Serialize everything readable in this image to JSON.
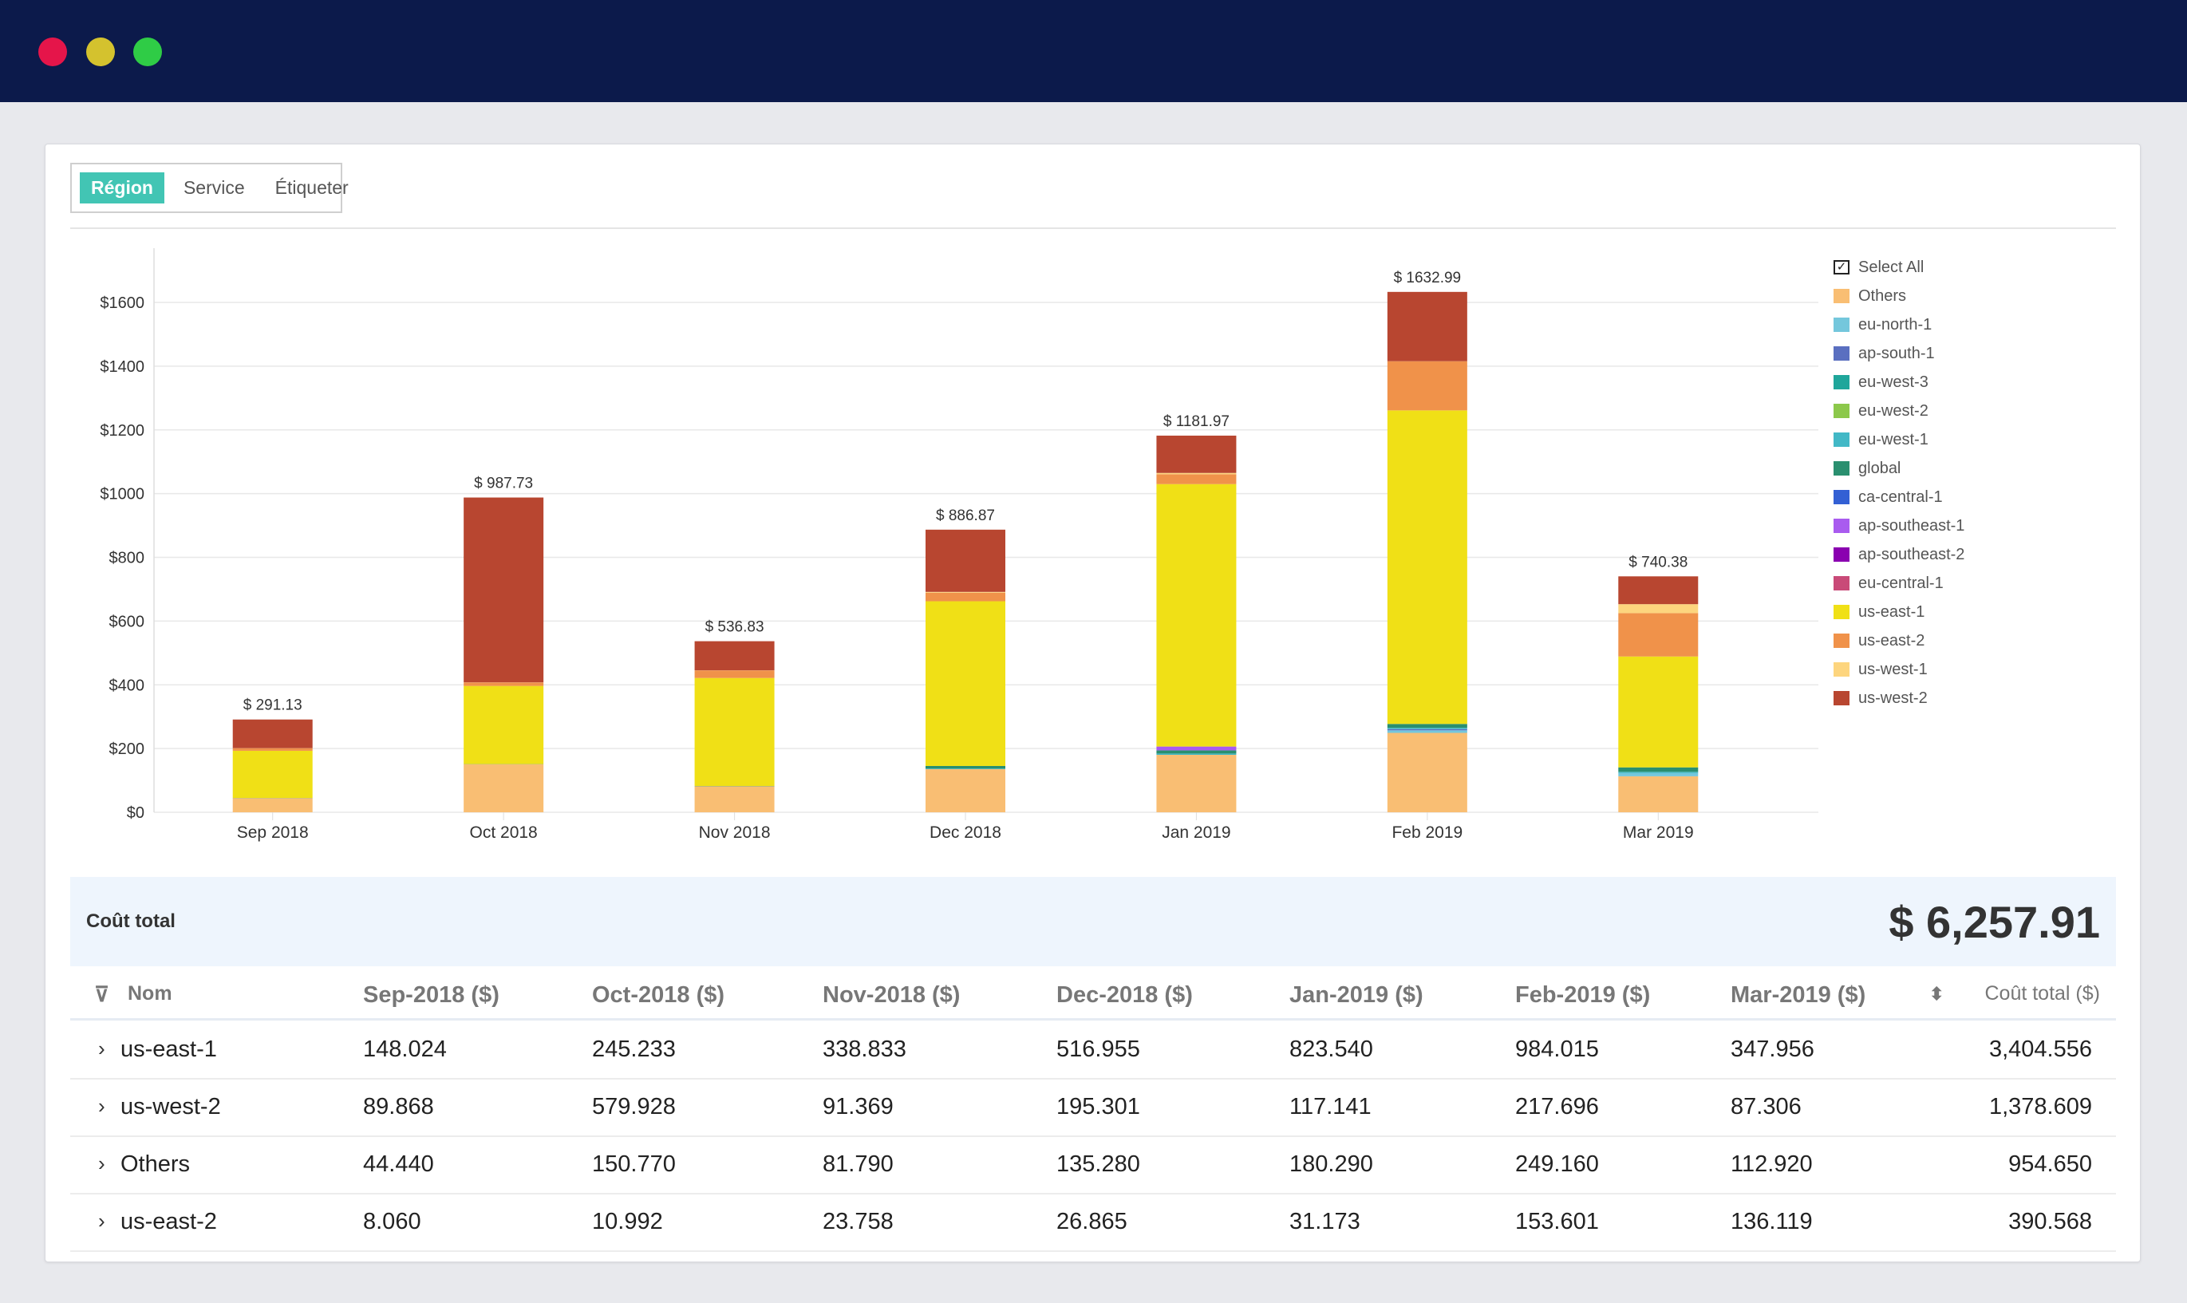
{
  "window": {
    "dots": [
      "#e5154a",
      "#d4c22e",
      "#2fcc46"
    ]
  },
  "tabs": [
    {
      "label": "Région",
      "active": true
    },
    {
      "label": "Service",
      "active": false
    },
    {
      "label": "Étiqueter",
      "active": false
    }
  ],
  "legend": {
    "select_all": "Select All"
  },
  "chart_data": {
    "type": "bar",
    "stacked": true,
    "categories": [
      "Sep 2018",
      "Oct 2018",
      "Nov 2018",
      "Dec 2018",
      "Jan 2019",
      "Feb 2019",
      "Mar 2019"
    ],
    "totals": [
      291.13,
      987.73,
      536.83,
      886.87,
      1181.97,
      1632.99,
      740.38
    ],
    "total_labels": [
      "$ 291.13",
      "$ 987.73",
      "$ 536.83",
      "$ 886.87",
      "$ 1181.97",
      "$ 1632.99",
      "$ 740.38"
    ],
    "ylim": [
      0,
      1700
    ],
    "yticks": [
      0,
      200,
      400,
      600,
      800,
      1000,
      1200,
      1400,
      1600
    ],
    "ytick_labels": [
      "$0",
      "$200",
      "$400",
      "$600",
      "$800",
      "$1000",
      "$1200",
      "$1400",
      "$1600"
    ],
    "grid": true,
    "legend_position": "right",
    "series": [
      {
        "name": "Others",
        "color": "#f9be73",
        "values": [
          44.44,
          150.77,
          81.79,
          135.28,
          180.29,
          249.16,
          112.92
        ]
      },
      {
        "name": "eu-north-1",
        "color": "#74c7dc",
        "values": [
          0,
          0,
          0,
          0,
          0,
          8,
          10
        ]
      },
      {
        "name": "ap-south-1",
        "color": "#5a6fc0",
        "values": [
          0,
          0,
          0,
          0,
          0,
          4,
          0
        ]
      },
      {
        "name": "eu-west-3",
        "color": "#1fa69b",
        "values": [
          0,
          0,
          0,
          0,
          0,
          0,
          0
        ]
      },
      {
        "name": "eu-west-2",
        "color": "#8cc84b",
        "values": [
          0,
          0,
          0,
          0,
          0,
          0,
          0
        ]
      },
      {
        "name": "eu-west-1",
        "color": "#42b8c6",
        "values": [
          0,
          0,
          0,
          2,
          4,
          4,
          4
        ]
      },
      {
        "name": "global",
        "color": "#2a8f6f",
        "values": [
          0.5,
          0.5,
          0.8,
          8,
          10,
          12,
          14
        ]
      },
      {
        "name": "ca-central-1",
        "color": "#3360d4",
        "values": [
          0,
          0,
          0,
          0,
          0,
          0,
          0
        ]
      },
      {
        "name": "ap-southeast-1",
        "color": "#a95bef",
        "values": [
          0,
          0,
          0,
          0,
          12,
          0,
          0
        ]
      },
      {
        "name": "ap-southeast-2",
        "color": "#8a00b0",
        "values": [
          0,
          0,
          0,
          0,
          0,
          0,
          0
        ]
      },
      {
        "name": "eu-central-1",
        "color": "#c94a78",
        "values": [
          0,
          0,
          0,
          0,
          0,
          0,
          0
        ]
      },
      {
        "name": "us-east-1",
        "color": "#f0e016",
        "values": [
          148.024,
          245.233,
          338.833,
          516.955,
          823.54,
          984.015,
          347.956
        ]
      },
      {
        "name": "us-east-2",
        "color": "#f0924a",
        "values": [
          8.06,
          10.992,
          23.758,
          26.865,
          31.173,
          153.601,
          136.119
        ]
      },
      {
        "name": "us-west-1",
        "color": "#fdd57e",
        "values": [
          0.24,
          0.31,
          0.28,
          2.47,
          3.83,
          0.52,
          28.08
        ]
      },
      {
        "name": "us-west-2",
        "color": "#b84630",
        "values": [
          89.868,
          579.928,
          91.369,
          195.301,
          117.141,
          217.696,
          87.306
        ]
      }
    ]
  },
  "summary": {
    "label": "Coût total",
    "value": "$ 6,257.91"
  },
  "table": {
    "headers": [
      "Nom",
      "Sep-2018 ($)",
      "Oct-2018 ($)",
      "Nov-2018 ($)",
      "Dec-2018 ($)",
      "Jan-2019 ($)",
      "Feb-2019 ($)",
      "Mar-2019 ($)",
      "Coût total ($)"
    ],
    "rows": [
      [
        "us-east-1",
        "148.024",
        "245.233",
        "338.833",
        "516.955",
        "823.540",
        "984.015",
        "347.956",
        "3,404.556"
      ],
      [
        "us-west-2",
        "89.868",
        "579.928",
        "91.369",
        "195.301",
        "117.141",
        "217.696",
        "87.306",
        "1,378.609"
      ],
      [
        "Others",
        "44.440",
        "150.770",
        "81.790",
        "135.280",
        "180.290",
        "249.160",
        "112.920",
        "954.650"
      ],
      [
        "us-east-2",
        "8.060",
        "10.992",
        "23.758",
        "26.865",
        "31.173",
        "153.601",
        "136.119",
        "390.568"
      ]
    ]
  }
}
